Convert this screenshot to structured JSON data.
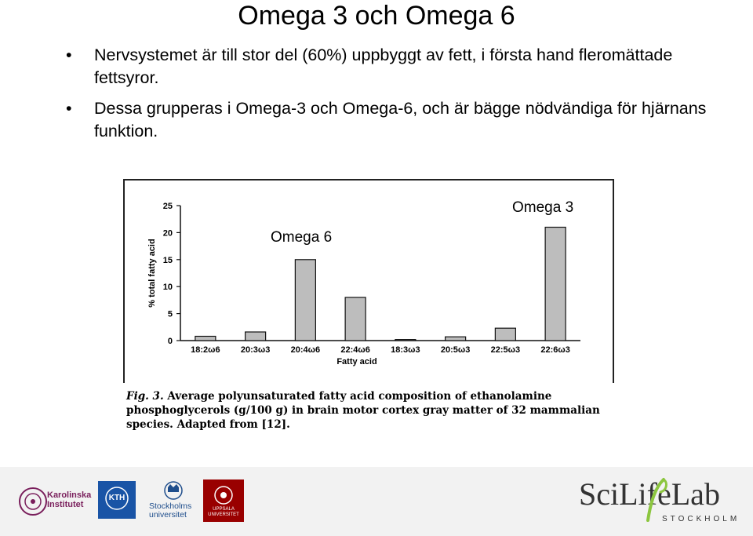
{
  "slide": {
    "title": "Omega 3 och Omega 6",
    "bullets": [
      "Nervsystemet är till stor del (60%) uppbyggt av fett, i första hand fleromättade fettsyror.",
      "Dessa grupperas i Omega-3 och Omega-6, och är bägge nödvändiga för hjärnans funktion."
    ],
    "overlay_labels": {
      "omega6": "Omega 6",
      "omega3": "Omega 3"
    },
    "caption": {
      "fig_label": "Fig. 3.",
      "text": " Average polyunsaturated fatty acid composition of ethanolamine phosphoglycerols (g/100 g) in brain motor cortex gray matter of 32 mammalian species. Adapted from [12]."
    }
  },
  "chart_data": {
    "type": "bar",
    "categories": [
      "18:2ω6",
      "20:3ω3",
      "20:4ω6",
      "22:4ω6",
      "18:3ω3",
      "20:5ω3",
      "22:5ω3",
      "22:6ω3"
    ],
    "values": [
      0.8,
      1.6,
      15.0,
      8.0,
      0.2,
      0.7,
      2.3,
      21.0
    ],
    "xlabel": "Fatty acid",
    "ylabel": "% total fatty acid",
    "yticks": [
      0,
      5,
      10,
      15,
      20,
      25
    ],
    "ylim": [
      0,
      25
    ],
    "bar_color": "#bdbdbd",
    "grid": false
  },
  "logos": {
    "karolinska": "Karolinska Institutet",
    "kth": "KTH",
    "stockholm": "Stockholms universitet",
    "uppsala": "UPPSALA UNIVERSITET",
    "scilifelab": {
      "name_a": "Sci",
      "name_b": "Life",
      "name_c": "Lab",
      "sub": "STOCKHOLM"
    }
  },
  "colors": {
    "kth_blue": "#1954a6",
    "uppsala_red": "#990000",
    "karolinska_purple": "#7a1f5c",
    "scilifelab_green": "#8cc63f",
    "scilifelab_dark": "#333333"
  }
}
